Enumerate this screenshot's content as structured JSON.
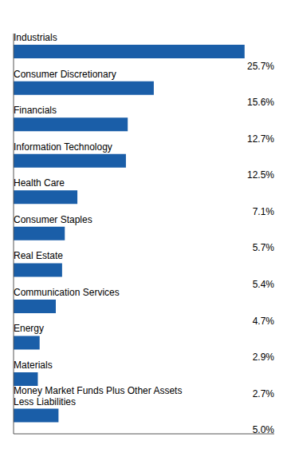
{
  "chart_data": {
    "type": "bar",
    "orientation": "horizontal",
    "categories": [
      "Industrials",
      "Consumer Discretionary",
      "Financials",
      "Information Technology",
      "Health Care",
      "Consumer Staples",
      "Real Estate",
      "Communication Services",
      "Energy",
      "Materials",
      "Money Market Funds Plus Other Assets\nLess Liabilities"
    ],
    "values": [
      25.7,
      15.6,
      12.7,
      12.5,
      7.1,
      5.7,
      5.4,
      4.7,
      2.9,
      2.7,
      5.0
    ],
    "value_labels": [
      "25.7%",
      "15.6%",
      "12.7%",
      "12.5%",
      "7.1%",
      "5.7%",
      "5.4%",
      "4.7%",
      "2.9%",
      "2.7%",
      "5.0%"
    ],
    "color": "#1A5EA8",
    "xlim": [
      0,
      29
    ],
    "data_labels": true,
    "tick_labels": false,
    "grid": false
  }
}
